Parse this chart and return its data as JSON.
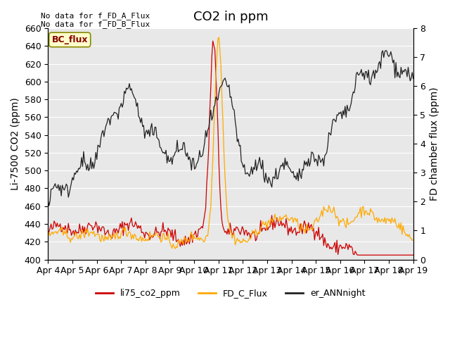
{
  "title": "CO2 in ppm",
  "ylabel_left": "Li-7500 CO2 (ppm)",
  "ylabel_right": "FD chamber flux (ppm)",
  "ylim_left": [
    400,
    660
  ],
  "ylim_right": [
    0.0,
    8.0
  ],
  "yticks_left": [
    400,
    420,
    440,
    460,
    480,
    500,
    520,
    540,
    560,
    580,
    600,
    620,
    640,
    660
  ],
  "yticks_right": [
    0.0,
    1.0,
    2.0,
    3.0,
    4.0,
    5.0,
    6.0,
    7.0,
    8.0
  ],
  "xtick_labels": [
    "Apr 4",
    "Apr 5",
    "Apr 6",
    "Apr 7",
    "Apr 8",
    "Apr 9",
    "Apr 10",
    "Apr 11",
    "Apr 12",
    "Apr 13",
    "Apr 14",
    "Apr 15",
    "Apr 16",
    "Apr 17",
    "Apr 18",
    "Apr 19"
  ],
  "annotation_top": "No data for f_FD_A_Flux\nNo data for f_FD_B_Flux",
  "bc_flux_label": "BC_flux",
  "legend_entries": [
    "li75_co2_ppm",
    "FD_C_Flux",
    "er_ANNnight"
  ],
  "legend_colors": [
    "#cc0000",
    "#ffaa00",
    "#222222"
  ],
  "color_red": "#cc0000",
  "color_orange": "#ffaa00",
  "color_black": "#222222",
  "bg_color": "#e8e8e8",
  "n_points": 360,
  "title_fontsize": 13,
  "label_fontsize": 10,
  "tick_fontsize": 9
}
